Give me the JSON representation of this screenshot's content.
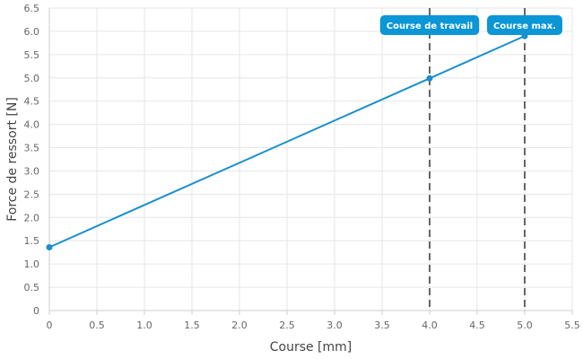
{
  "chart_data": {
    "type": "line",
    "xlabel": "Course [mm]",
    "ylabel": "Force de ressort [N]",
    "xlim": [
      0,
      5.5
    ],
    "ylim": [
      0,
      6.5
    ],
    "x_ticks": [
      0,
      0.5,
      1.0,
      1.5,
      2.0,
      2.5,
      3.0,
      3.5,
      4.0,
      4.5,
      5.0,
      5.5
    ],
    "x_tick_labels": [
      "0",
      "0.5",
      "1.0",
      "1.5",
      "2.0",
      "2.5",
      "3.0",
      "3.5",
      "4.0",
      "4.5",
      "5.0",
      "5.5"
    ],
    "y_ticks": [
      0,
      0.5,
      1.0,
      1.5,
      2.0,
      2.5,
      3.0,
      3.5,
      4.0,
      4.5,
      5.0,
      5.5,
      6.0,
      6.5
    ],
    "y_tick_labels": [
      "0",
      "0.5",
      "1.0",
      "1.5",
      "2.0",
      "2.5",
      "3.0",
      "3.5",
      "4.0",
      "4.5",
      "5.0",
      "5.5",
      "6.0",
      "6.5"
    ],
    "grid": true,
    "series": [
      {
        "color": "#1a8fcc",
        "points": [
          {
            "x": 0,
            "y": 1.36
          },
          {
            "x": 4.0,
            "y": 4.99
          },
          {
            "x": 5.0,
            "y": 5.9
          }
        ]
      }
    ],
    "vertical_markers": [
      {
        "x": 4.0,
        "label": "Course de travail",
        "color": "#0b96d6"
      },
      {
        "x": 5.0,
        "label": "Course max.",
        "color": "#0b96d6"
      }
    ]
  }
}
